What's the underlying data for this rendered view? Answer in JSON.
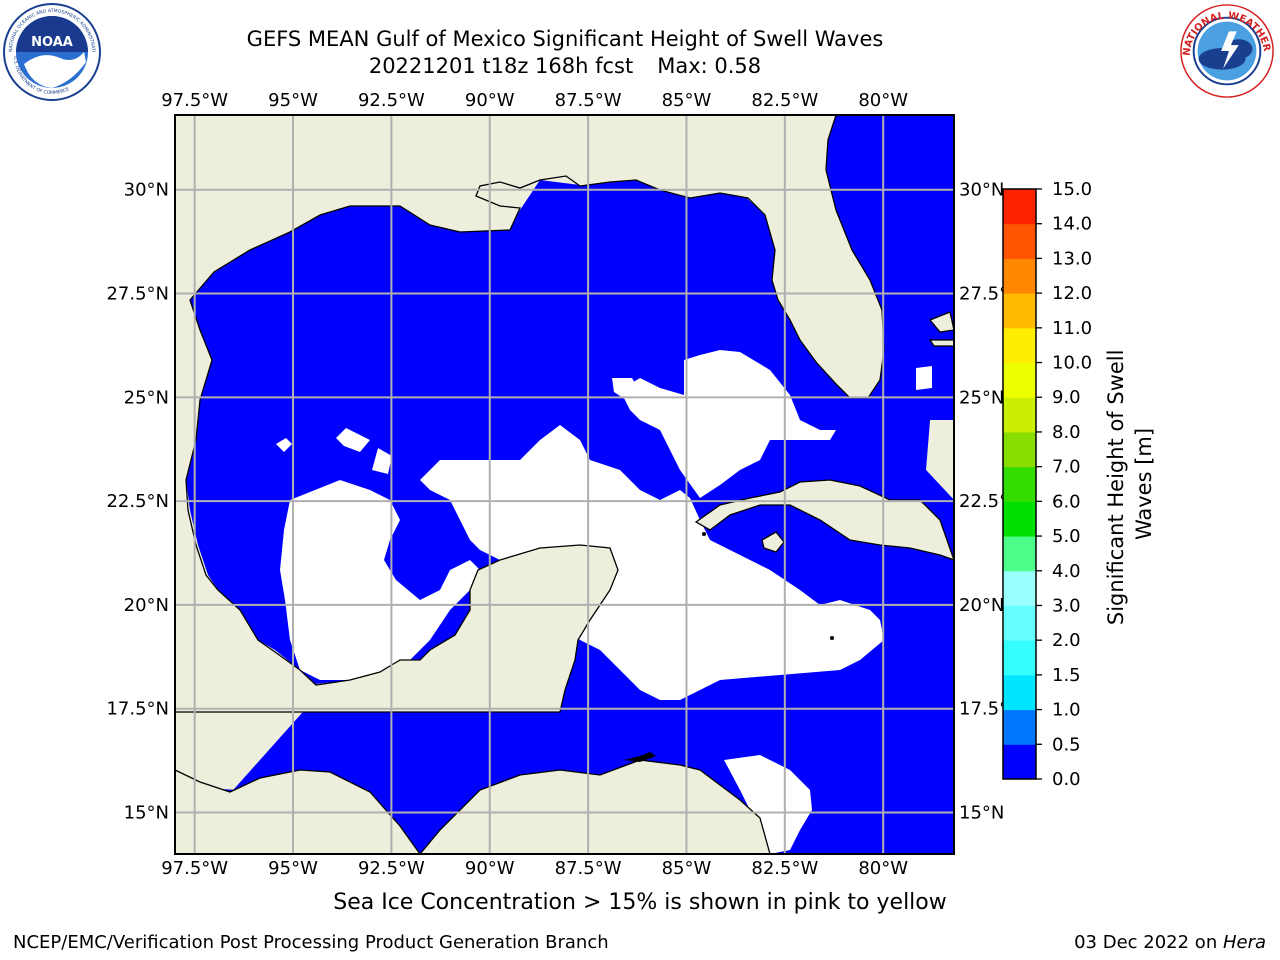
{
  "header": {
    "title_line1": "GEFS MEAN Gulf of Mexico Significant Height of Swell Waves",
    "title_date": "20221201 t18z 168h fcst",
    "title_max": "Max: 0.58"
  },
  "logos": {
    "left": {
      "name": "noaa-logo",
      "center_text": "NOAA",
      "ring_text_top": "NATIONAL OCEANIC AND ATMOSPHERIC ADMINISTRATION",
      "ring_text_bottom": "U.S. DEPARTMENT OF COMMERCE"
    },
    "right": {
      "name": "nws-logo",
      "ring_text": "NATIONAL WEATHER SERVICE"
    }
  },
  "map": {
    "region": "Gulf of Mexico",
    "lon_labels": [
      "97.5°W",
      "95°W",
      "92.5°W",
      "90°W",
      "87.5°W",
      "85°W",
      "82.5°W",
      "80°W"
    ],
    "lat_labels": [
      "30°N",
      "27.5°N",
      "25°N",
      "22.5°N",
      "20°N",
      "17.5°N",
      "15°N"
    ],
    "lon_values": [
      -97.5,
      -95,
      -92.5,
      -90,
      -87.5,
      -85,
      -82.5,
      -80
    ],
    "lat_values": [
      30,
      27.5,
      25,
      22.5,
      20,
      17.5,
      15
    ],
    "lon_range": [
      -98,
      -78.2
    ],
    "lat_range": [
      14,
      31.8
    ],
    "colors": {
      "land": "#eeeedc",
      "ocean_low": "#0000ff",
      "ocean_zero": "#ffffff",
      "grid": "#b0b0b0",
      "coast": "#000000"
    }
  },
  "colorbar": {
    "label": "Significant Height of Swell Waves [m]",
    "tick_labels": [
      "0.0",
      "0.5",
      "1.0",
      "1.5",
      "2.0",
      "3.0",
      "4.0",
      "5.0",
      "6.0",
      "7.0",
      "8.0",
      "9.0",
      "10.0",
      "11.0",
      "12.0",
      "13.0",
      "14.0",
      "15.0"
    ],
    "colors": [
      "#0000ff",
      "#0077ff",
      "#00e5ff",
      "#33ffff",
      "#66ffff",
      "#99ffff",
      "#4dff88",
      "#00e000",
      "#33dd00",
      "#88dd00",
      "#ccee00",
      "#eeff00",
      "#ffee00",
      "#ffbb00",
      "#ff8800",
      "#ff5500",
      "#ff2200"
    ]
  },
  "note": "Sea Ice Concentration > 15% is shown in pink to yellow",
  "footer": {
    "left": "NCEP/EMC/Verification Post Processing Product Generation Branch",
    "date": "03 Dec 2022 on ",
    "host": "Hera"
  }
}
